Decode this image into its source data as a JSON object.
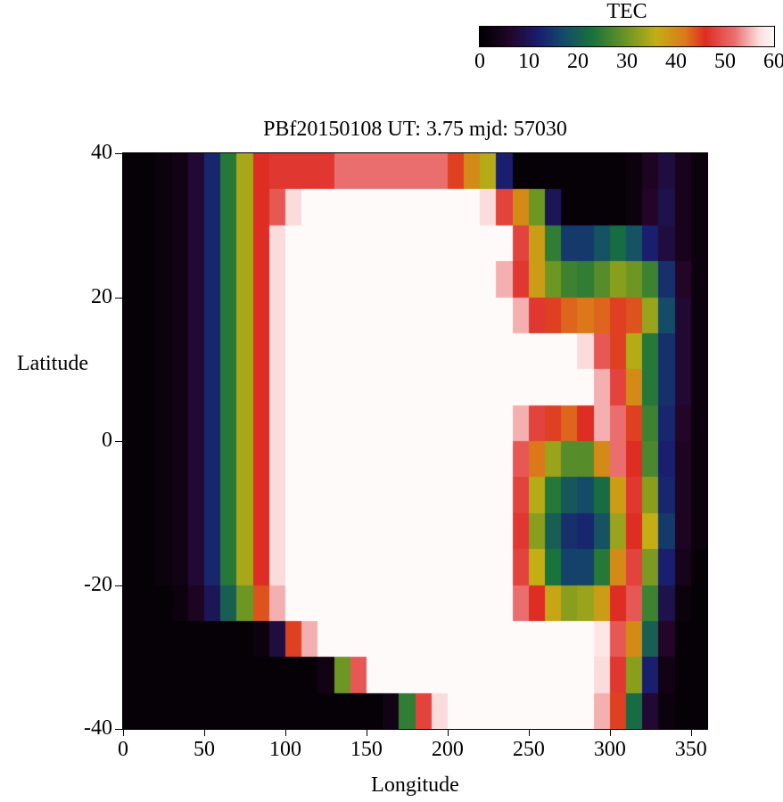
{
  "title": "PBf20150108  UT: 3.75  mjd: 57030",
  "colorbar": {
    "label": "TEC",
    "ticks": [
      0,
      10,
      20,
      30,
      40,
      50,
      60
    ],
    "min": 0,
    "max": 60
  },
  "axes": {
    "xlabel": "Longitude",
    "ylabel": "Latitude",
    "x_ticks": [
      0,
      50,
      100,
      150,
      200,
      250,
      300,
      350
    ],
    "y_ticks": [
      40,
      20,
      0,
      -20,
      -40
    ],
    "xlim": [
      0,
      360
    ],
    "ylim": [
      -40,
      40
    ]
  },
  "chart_data": {
    "type": "heatmap",
    "title": "PBf20150108  UT: 3.75  mjd: 57030",
    "xlabel": "Longitude",
    "ylabel": "Latitude",
    "colorbar_label": "TEC",
    "value_min": 0,
    "value_max": 60,
    "colorbar_ticks": [
      0,
      10,
      20,
      30,
      40,
      50,
      60
    ],
    "x_ticks": [
      0,
      50,
      100,
      150,
      200,
      250,
      300,
      350
    ],
    "y_ticks": [
      40,
      20,
      0,
      -20,
      -40
    ],
    "xlim": [
      0,
      360
    ],
    "ylim": [
      -40,
      40
    ],
    "lon_start": 0,
    "lon_step": 10,
    "n_lon": 36,
    "lat_start": 40,
    "lat_step": -5,
    "n_lat": 16,
    "palette_stops": [
      [
        0,
        "#000000"
      ],
      [
        6,
        "#230528"
      ],
      [
        12,
        "#191e6e"
      ],
      [
        17,
        "#144b69"
      ],
      [
        23,
        "#19733c"
      ],
      [
        30,
        "#6e9623"
      ],
      [
        36,
        "#c3af14"
      ],
      [
        42,
        "#dc7819"
      ],
      [
        46,
        "#de2d23"
      ],
      [
        52,
        "#eb6e6e"
      ],
      [
        57,
        "#fadcdc"
      ],
      [
        60,
        "#fffafa"
      ]
    ],
    "grid": [
      [
        1,
        1,
        2,
        3,
        7,
        13,
        24,
        34,
        46,
        47,
        47,
        47,
        47,
        52,
        52,
        52,
        52,
        52,
        52,
        52,
        45,
        40,
        35,
        12,
        1,
        1,
        1,
        1,
        1,
        1,
        1,
        2,
        5,
        8,
        4,
        2
      ],
      [
        1,
        1,
        2,
        3,
        7,
        13,
        24,
        34,
        46,
        50,
        57,
        60,
        60,
        60,
        60,
        60,
        60,
        60,
        60,
        60,
        60,
        60,
        57,
        48,
        40,
        30,
        10,
        1,
        1,
        1,
        1,
        2,
        6,
        9,
        4,
        2
      ],
      [
        1,
        1,
        2,
        3,
        7,
        13,
        24,
        34,
        46,
        57,
        60,
        60,
        60,
        60,
        60,
        60,
        60,
        60,
        60,
        60,
        60,
        60,
        60,
        60,
        48,
        38,
        25,
        15,
        15,
        18,
        22,
        18,
        12,
        8,
        4,
        2
      ],
      [
        1,
        1,
        2,
        3,
        7,
        13,
        24,
        34,
        46,
        57,
        60,
        60,
        60,
        60,
        60,
        60,
        60,
        60,
        60,
        60,
        60,
        60,
        60,
        55,
        47,
        38,
        30,
        26,
        25,
        28,
        32,
        30,
        26,
        14,
        6,
        2
      ],
      [
        1,
        1,
        2,
        3,
        7,
        13,
        24,
        34,
        46,
        57,
        60,
        60,
        60,
        60,
        60,
        60,
        60,
        60,
        60,
        60,
        60,
        60,
        60,
        60,
        55,
        47,
        45,
        43,
        42,
        43,
        45,
        44,
        33,
        17,
        7,
        2
      ],
      [
        1,
        1,
        2,
        3,
        7,
        13,
        24,
        34,
        46,
        57,
        60,
        60,
        60,
        60,
        60,
        60,
        60,
        60,
        60,
        60,
        60,
        60,
        60,
        60,
        60,
        60,
        60,
        60,
        57,
        50,
        45,
        35,
        24,
        14,
        7,
        2
      ],
      [
        1,
        1,
        2,
        3,
        7,
        13,
        24,
        34,
        46,
        57,
        60,
        60,
        60,
        60,
        60,
        60,
        60,
        60,
        60,
        60,
        60,
        60,
        60,
        60,
        60,
        60,
        60,
        60,
        60,
        55,
        48,
        40,
        24,
        14,
        7,
        2
      ],
      [
        1,
        1,
        2,
        3,
        7,
        13,
        24,
        34,
        46,
        57,
        60,
        60,
        60,
        60,
        60,
        60,
        60,
        60,
        60,
        60,
        60,
        60,
        60,
        60,
        55,
        48,
        45,
        43,
        46,
        55,
        52,
        45,
        26,
        13,
        6,
        2
      ],
      [
        1,
        1,
        2,
        3,
        7,
        13,
        24,
        34,
        46,
        57,
        60,
        60,
        60,
        60,
        60,
        60,
        60,
        60,
        60,
        60,
        60,
        60,
        60,
        60,
        50,
        42,
        33,
        28,
        28,
        40,
        52,
        46,
        27,
        12,
        5,
        2
      ],
      [
        1,
        1,
        2,
        3,
        7,
        13,
        24,
        34,
        46,
        57,
        60,
        60,
        60,
        60,
        60,
        60,
        60,
        60,
        60,
        60,
        60,
        60,
        60,
        60,
        48,
        35,
        24,
        19,
        17,
        22,
        38,
        47,
        32,
        13,
        5,
        2
      ],
      [
        1,
        1,
        2,
        3,
        7,
        13,
        24,
        34,
        46,
        57,
        60,
        60,
        60,
        60,
        60,
        60,
        60,
        60,
        60,
        60,
        60,
        60,
        60,
        60,
        47,
        32,
        20,
        14,
        13,
        18,
        33,
        46,
        36,
        15,
        5,
        2
      ],
      [
        1,
        1,
        2,
        3,
        7,
        13,
        24,
        34,
        46,
        57,
        60,
        60,
        60,
        60,
        60,
        60,
        60,
        60,
        60,
        60,
        60,
        60,
        60,
        60,
        48,
        36,
        23,
        16,
        16,
        24,
        40,
        48,
        31,
        12,
        4,
        1
      ],
      [
        1,
        1,
        1,
        2,
        5,
        10,
        20,
        30,
        44,
        55,
        60,
        60,
        60,
        60,
        60,
        60,
        60,
        60,
        60,
        60,
        60,
        60,
        60,
        60,
        52,
        46,
        37,
        32,
        33,
        38,
        46,
        50,
        26,
        9,
        2,
        1
      ],
      [
        1,
        1,
        1,
        1,
        1,
        1,
        1,
        1,
        2,
        8,
        45,
        55,
        60,
        60,
        60,
        60,
        60,
        60,
        60,
        60,
        60,
        60,
        60,
        60,
        60,
        60,
        60,
        60,
        60,
        58,
        50,
        40,
        20,
        6,
        1,
        1
      ],
      [
        1,
        1,
        1,
        1,
        1,
        1,
        1,
        1,
        1,
        1,
        1,
        1,
        3,
        30,
        50,
        60,
        60,
        60,
        60,
        60,
        60,
        60,
        60,
        60,
        60,
        60,
        60,
        60,
        60,
        57,
        47,
        32,
        12,
        3,
        1,
        1
      ],
      [
        1,
        1,
        1,
        1,
        1,
        1,
        1,
        1,
        1,
        1,
        1,
        1,
        1,
        1,
        1,
        1,
        3,
        25,
        48,
        57,
        60,
        60,
        60,
        60,
        60,
        60,
        60,
        60,
        60,
        55,
        45,
        22,
        7,
        2,
        1,
        1
      ]
    ]
  }
}
